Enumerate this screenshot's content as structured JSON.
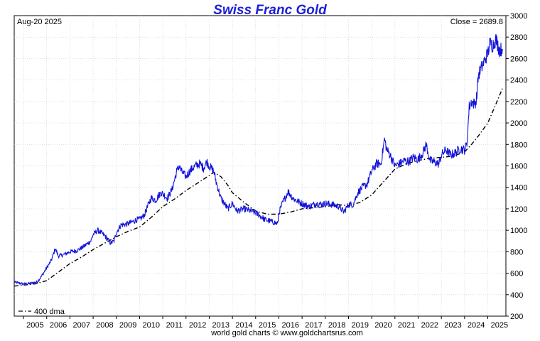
{
  "chart_data": {
    "type": "line",
    "title": "Swiss Franc Gold",
    "date_label": "Aug-20  2025",
    "close_label": "Close = 2689.8",
    "footer": "world gold charts © www.goldchartsrus.com",
    "xlim": [
      2004.6,
      2025.78
    ],
    "ylim": [
      200,
      3000
    ],
    "x_ticks": [
      "2005",
      "2006",
      "2007",
      "2008",
      "2009",
      "2010",
      "2011",
      "2012",
      "2013",
      "2014",
      "2015",
      "2016",
      "2017",
      "2018",
      "2019",
      "2020",
      "2021",
      "2022",
      "2023",
      "2024",
      "2025"
    ],
    "y_ticks": [
      200,
      400,
      600,
      800,
      1000,
      1200,
      1400,
      1600,
      1800,
      2000,
      2200,
      2400,
      2600,
      2800,
      3000
    ],
    "grid": true,
    "legend_position": "bottom-left",
    "series": [
      {
        "name": "",
        "color": "#1212d8",
        "style": "solid",
        "x": [
          2004.6,
          2004.75,
          2005.0,
          2005.3,
          2005.6,
          2005.8,
          2006.0,
          2006.2,
          2006.37,
          2006.5,
          2006.7,
          2007.0,
          2007.3,
          2007.6,
          2007.9,
          2008.0,
          2008.2,
          2008.5,
          2008.75,
          2008.9,
          2009.0,
          2009.2,
          2009.5,
          2009.9,
          2010.0,
          2010.2,
          2010.4,
          2010.5,
          2010.7,
          2010.9,
          2011.0,
          2011.2,
          2011.4,
          2011.6,
          2011.7,
          2011.8,
          2012.0,
          2012.2,
          2012.4,
          2012.6,
          2012.75,
          2012.9,
          2013.0,
          2013.2,
          2013.3,
          2013.5,
          2013.8,
          2014.0,
          2014.2,
          2014.5,
          2014.8,
          2015.0,
          2015.1,
          2015.4,
          2015.7,
          2015.95,
          2016.0,
          2016.15,
          2016.4,
          2016.6,
          2016.8,
          2017.0,
          2017.3,
          2017.6,
          2017.9,
          2018.0,
          2018.3,
          2018.6,
          2018.8,
          2019.0,
          2019.2,
          2019.4,
          2019.6,
          2019.8,
          2020.0,
          2020.2,
          2020.4,
          2020.55,
          2020.65,
          2020.8,
          2021.0,
          2021.2,
          2021.4,
          2021.6,
          2021.8,
          2022.0,
          2022.2,
          2022.35,
          2022.5,
          2022.75,
          2022.9,
          2023.0,
          2023.2,
          2023.4,
          2023.6,
          2023.8,
          2024.0,
          2024.1,
          2024.2,
          2024.3,
          2024.4,
          2024.5,
          2024.6,
          2024.8,
          2025.0,
          2025.1,
          2025.2,
          2025.35,
          2025.5,
          2025.63
        ],
        "y": [
          520,
          510,
          500,
          505,
          520,
          580,
          650,
          720,
          830,
          760,
          770,
          800,
          810,
          850,
          900,
          960,
          1000,
          950,
          880,
          900,
          980,
          1050,
          1060,
          1100,
          1100,
          1140,
          1250,
          1300,
          1280,
          1350,
          1340,
          1300,
          1380,
          1550,
          1600,
          1550,
          1500,
          1560,
          1600,
          1620,
          1580,
          1640,
          1600,
          1550,
          1450,
          1300,
          1200,
          1250,
          1180,
          1200,
          1180,
          1160,
          1150,
          1100,
          1080,
          1060,
          1160,
          1250,
          1360,
          1300,
          1270,
          1250,
          1220,
          1250,
          1240,
          1250,
          1240,
          1220,
          1170,
          1240,
          1240,
          1350,
          1400,
          1430,
          1550,
          1620,
          1620,
          1850,
          1750,
          1700,
          1600,
          1620,
          1650,
          1640,
          1680,
          1660,
          1720,
          1800,
          1650,
          1630,
          1620,
          1700,
          1750,
          1700,
          1720,
          1760,
          1750,
          1800,
          2150,
          2200,
          2180,
          2200,
          2450,
          2550,
          2650,
          2750,
          2720,
          2780,
          2680,
          2690
        ]
      },
      {
        "name": "400 dma",
        "color": "#000000",
        "style": "dashdot",
        "x": [
          2004.6,
          2005.5,
          2006.0,
          2006.5,
          2007.0,
          2007.5,
          2008.0,
          2008.5,
          2009.0,
          2009.5,
          2010.0,
          2010.5,
          2011.0,
          2011.5,
          2012.0,
          2012.5,
          2013.0,
          2013.2,
          2013.5,
          2013.8,
          2014.0,
          2014.5,
          2015.0,
          2015.5,
          2016.0,
          2016.5,
          2017.0,
          2017.5,
          2018.0,
          2018.5,
          2019.0,
          2019.5,
          2020.0,
          2020.5,
          2021.0,
          2021.5,
          2022.0,
          2022.5,
          2023.0,
          2023.5,
          2024.0,
          2024.3,
          2024.6,
          2025.0,
          2025.3,
          2025.63
        ],
        "y": [
          480,
          500,
          530,
          610,
          690,
          750,
          820,
          880,
          940,
          990,
          1030,
          1120,
          1220,
          1290,
          1370,
          1440,
          1510,
          1540,
          1500,
          1420,
          1350,
          1260,
          1180,
          1150,
          1150,
          1170,
          1200,
          1210,
          1220,
          1240,
          1230,
          1260,
          1330,
          1450,
          1570,
          1620,
          1650,
          1670,
          1680,
          1690,
          1730,
          1800,
          1880,
          2000,
          2150,
          2320
        ]
      }
    ]
  }
}
